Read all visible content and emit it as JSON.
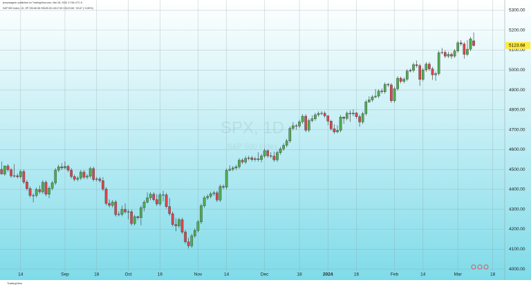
{
  "header": {
    "line1": "jerryvwagner published on TradingView.com, Mar 08, 2024 17:56 UTC-5",
    "line2": "S&P 500 Index, 1D, SP  O5146.98 H5189.26 L5117.50 C5123.68 −33.67 (−0.65%)",
    "logo": "TradingView"
  },
  "chart_data": {
    "type": "candlestick",
    "title": "SPX, 1D",
    "subtitle": "S&P 500 Index",
    "up_color": "#4caf50",
    "down_color": "#e0434a",
    "grid": true,
    "xlim": [
      -0.5,
      158.8
    ],
    "ylim": [
      3955,
      5352
    ],
    "yticks": [
      {
        "value": 4000,
        "label": "4000.00"
      },
      {
        "value": 4100,
        "label": "4100.00"
      },
      {
        "value": 4200,
        "label": "4200.00"
      },
      {
        "value": 4300,
        "label": "4300.00"
      },
      {
        "value": 4400,
        "label": "4400.00"
      },
      {
        "value": 4500,
        "label": "4500.00"
      },
      {
        "value": 4600,
        "label": "4600.00"
      },
      {
        "value": 4700,
        "label": "4700.00"
      },
      {
        "value": 4800,
        "label": "4800.00"
      },
      {
        "value": 4900,
        "label": "4900.00"
      },
      {
        "value": 5000,
        "label": "5000.00"
      },
      {
        "value": 5100,
        "label": "5100.00"
      },
      {
        "value": 5200,
        "label": "5200.00"
      },
      {
        "value": 5300,
        "label": "5300.00"
      }
    ],
    "xticks": [
      {
        "value": 6,
        "label": "14"
      },
      {
        "value": 20,
        "label": "Sep"
      },
      {
        "value": 30,
        "label": "18"
      },
      {
        "value": 40,
        "label": "Oct"
      },
      {
        "value": 50,
        "label": "16"
      },
      {
        "value": 62,
        "label": "Nov"
      },
      {
        "value": 71,
        "label": "14"
      },
      {
        "value": 83,
        "label": "Dec"
      },
      {
        "value": 94,
        "label": "18"
      },
      {
        "value": 103,
        "label": "2024"
      },
      {
        "value": 112,
        "label": "16"
      },
      {
        "value": 124,
        "label": "Feb"
      },
      {
        "value": 133,
        "label": "14"
      },
      {
        "value": 144,
        "label": "Mar"
      },
      {
        "value": 155,
        "label": "18"
      }
    ],
    "ohlc": [
      [
        4501,
        4540,
        4474,
        4478
      ],
      [
        4478,
        4520,
        4468,
        4518
      ],
      [
        4518,
        4528,
        4489,
        4499
      ],
      [
        4499,
        4509,
        4458,
        4468
      ],
      [
        4468,
        4527,
        4459,
        4469
      ],
      [
        4469,
        4480,
        4455,
        4464
      ],
      [
        4464,
        4500,
        4454,
        4490
      ],
      [
        4490,
        4500,
        4427,
        4437
      ],
      [
        4437,
        4447,
        4394,
        4404
      ],
      [
        4404,
        4414,
        4360,
        4370
      ],
      [
        4370,
        4380,
        4335,
        4370
      ],
      [
        4370,
        4410,
        4360,
        4400
      ],
      [
        4400,
        4420,
        4378,
        4388
      ],
      [
        4388,
        4446,
        4378,
        4436
      ],
      [
        4436,
        4446,
        4366,
        4376
      ],
      [
        4376,
        4416,
        4356,
        4406
      ],
      [
        4406,
        4443,
        4396,
        4433
      ],
      [
        4433,
        4507,
        4423,
        4497
      ],
      [
        4497,
        4524,
        4487,
        4514
      ],
      [
        4514,
        4532,
        4498,
        4508
      ],
      [
        4508,
        4541,
        4501,
        4516
      ],
      [
        4516,
        4524,
        4487,
        4497
      ],
      [
        4497,
        4507,
        4455,
        4465
      ],
      [
        4465,
        4475,
        4441,
        4451
      ],
      [
        4451,
        4467,
        4441,
        4457
      ],
      [
        4457,
        4497,
        4447,
        4487
      ],
      [
        4487,
        4497,
        4452,
        4462
      ],
      [
        4462,
        4477,
        4452,
        4467
      ],
      [
        4467,
        4515,
        4457,
        4505
      ],
      [
        4505,
        4515,
        4440,
        4450
      ],
      [
        4450,
        4463,
        4440,
        4453
      ],
      [
        4453,
        4463,
        4434,
        4444
      ],
      [
        4444,
        4462,
        4392,
        4402
      ],
      [
        4402,
        4412,
        4320,
        4330
      ],
      [
        4330,
        4350,
        4310,
        4320
      ],
      [
        4320,
        4347,
        4310,
        4337
      ],
      [
        4337,
        4347,
        4264,
        4274
      ],
      [
        4274,
        4290,
        4265,
        4275
      ],
      [
        4275,
        4318,
        4265,
        4300
      ],
      [
        4300,
        4330,
        4278,
        4288
      ],
      [
        4288,
        4300,
        4250,
        4288
      ],
      [
        4288,
        4298,
        4219,
        4229
      ],
      [
        4229,
        4273,
        4219,
        4263
      ],
      [
        4263,
        4268,
        4248,
        4258
      ],
      [
        4258,
        4318,
        4220,
        4308
      ],
      [
        4308,
        4346,
        4290,
        4336
      ],
      [
        4336,
        4385,
        4330,
        4358
      ],
      [
        4358,
        4386,
        4345,
        4376
      ],
      [
        4376,
        4386,
        4339,
        4349
      ],
      [
        4349,
        4377,
        4317,
        4327
      ],
      [
        4327,
        4383,
        4317,
        4373
      ],
      [
        4373,
        4393,
        4340,
        4373
      ],
      [
        4373,
        4383,
        4304,
        4314
      ],
      [
        4314,
        4357,
        4268,
        4278
      ],
      [
        4278,
        4288,
        4214,
        4224
      ],
      [
        4224,
        4255,
        4190,
        4217
      ],
      [
        4217,
        4258,
        4207,
        4248
      ],
      [
        4248,
        4258,
        4176,
        4186
      ],
      [
        4186,
        4196,
        4127,
        4137
      ],
      [
        4137,
        4156,
        4103,
        4117
      ],
      [
        4117,
        4177,
        4107,
        4167
      ],
      [
        4167,
        4204,
        4157,
        4194
      ],
      [
        4194,
        4247,
        4184,
        4237
      ],
      [
        4237,
        4328,
        4227,
        4318
      ],
      [
        4318,
        4368,
        4308,
        4358
      ],
      [
        4358,
        4375,
        4348,
        4365
      ],
      [
        4365,
        4388,
        4355,
        4378
      ],
      [
        4378,
        4393,
        4368,
        4383
      ],
      [
        4383,
        4393,
        4337,
        4347
      ],
      [
        4347,
        4425,
        4337,
        4415
      ],
      [
        4415,
        4425,
        4401,
        4411
      ],
      [
        4411,
        4506,
        4401,
        4496
      ],
      [
        4496,
        4521,
        4492,
        4502
      ],
      [
        4502,
        4518,
        4492,
        4508
      ],
      [
        4508,
        4524,
        4498,
        4514
      ],
      [
        4514,
        4557,
        4504,
        4547
      ],
      [
        4547,
        4557,
        4528,
        4538
      ],
      [
        4538,
        4568,
        4528,
        4556
      ],
      [
        4556,
        4569,
        4546,
        4559
      ],
      [
        4559,
        4569,
        4540,
        4550
      ],
      [
        4550,
        4564,
        4540,
        4554
      ],
      [
        4554,
        4587,
        4540,
        4550
      ],
      [
        4550,
        4578,
        4537,
        4568
      ],
      [
        4568,
        4605,
        4558,
        4595
      ],
      [
        4595,
        4600,
        4559,
        4569
      ],
      [
        4569,
        4587,
        4557,
        4567
      ],
      [
        4567,
        4590,
        4539,
        4549
      ],
      [
        4549,
        4595,
        4539,
        4585
      ],
      [
        4585,
        4614,
        4575,
        4604
      ],
      [
        4604,
        4632,
        4594,
        4622
      ],
      [
        4622,
        4654,
        4612,
        4644
      ],
      [
        4644,
        4717,
        4634,
        4707
      ],
      [
        4707,
        4738,
        4697,
        4720
      ],
      [
        4720,
        4729,
        4700,
        4719
      ],
      [
        4719,
        4750,
        4709,
        4740
      ],
      [
        4740,
        4778,
        4730,
        4768
      ],
      [
        4768,
        4778,
        4688,
        4698
      ],
      [
        4698,
        4756,
        4688,
        4746
      ],
      [
        4746,
        4772,
        4738,
        4755
      ],
      [
        4755,
        4785,
        4745,
        4775
      ],
      [
        4775,
        4792,
        4765,
        4782
      ],
      [
        4782,
        4793,
        4773,
        4783
      ],
      [
        4783,
        4793,
        4760,
        4770
      ],
      [
        4770,
        4773,
        4723,
        4743
      ],
      [
        4743,
        4750,
        4695,
        4705
      ],
      [
        4705,
        4727,
        4679,
        4689
      ],
      [
        4689,
        4722,
        4682,
        4697
      ],
      [
        4697,
        4774,
        4687,
        4764
      ],
      [
        4764,
        4767,
        4730,
        4757
      ],
      [
        4757,
        4793,
        4747,
        4783
      ],
      [
        4783,
        4798,
        4740,
        4780
      ],
      [
        4780,
        4803,
        4768,
        4784
      ],
      [
        4784,
        4790,
        4756,
        4766
      ],
      [
        4766,
        4776,
        4715,
        4739
      ],
      [
        4739,
        4791,
        4729,
        4781
      ],
      [
        4781,
        4850,
        4771,
        4840
      ],
      [
        4840,
        4868,
        4835,
        4850
      ],
      [
        4850,
        4875,
        4840,
        4865
      ],
      [
        4865,
        4904,
        4859,
        4869
      ],
      [
        4869,
        4904,
        4859,
        4894
      ],
      [
        4894,
        4907,
        4881,
        4891
      ],
      [
        4891,
        4938,
        4881,
        4928
      ],
      [
        4928,
        4935,
        4915,
        4925
      ],
      [
        4925,
        4935,
        4836,
        4846
      ],
      [
        4846,
        4916,
        4836,
        4906
      ],
      [
        4906,
        4969,
        4896,
        4959
      ],
      [
        4959,
        4967,
        4933,
        4943
      ],
      [
        4943,
        4964,
        4933,
        4954
      ],
      [
        4954,
        5005,
        4944,
        4995
      ],
      [
        4995,
        5008,
        4988,
        4998
      ],
      [
        4998,
        5037,
        4988,
        5027
      ],
      [
        5027,
        5048,
        5012,
        5022
      ],
      [
        5022,
        5032,
        4920,
        4953
      ],
      [
        4953,
        5011,
        4943,
        5001
      ],
      [
        5001,
        5040,
        4991,
        5030
      ],
      [
        5030,
        5040,
        4996,
        5006
      ],
      [
        5006,
        5016,
        4950,
        4976
      ],
      [
        4976,
        4992,
        4946,
        4982
      ],
      [
        4982,
        5097,
        4972,
        5087
      ],
      [
        5087,
        5111,
        5079,
        5089
      ],
      [
        5089,
        5099,
        5060,
        5070
      ],
      [
        5070,
        5092,
        5060,
        5079
      ],
      [
        5079,
        5089,
        5056,
        5070
      ],
      [
        5070,
        5106,
        5060,
        5096
      ],
      [
        5096,
        5147,
        5086,
        5137
      ],
      [
        5137,
        5150,
        5121,
        5131
      ],
      [
        5131,
        5141,
        5057,
        5079
      ],
      [
        5079,
        5150,
        5069,
        5105
      ],
      [
        5105,
        5167,
        5095,
        5157
      ],
      [
        5146.98,
        5189.26,
        5117.5,
        5123.68
      ]
    ]
  }
}
